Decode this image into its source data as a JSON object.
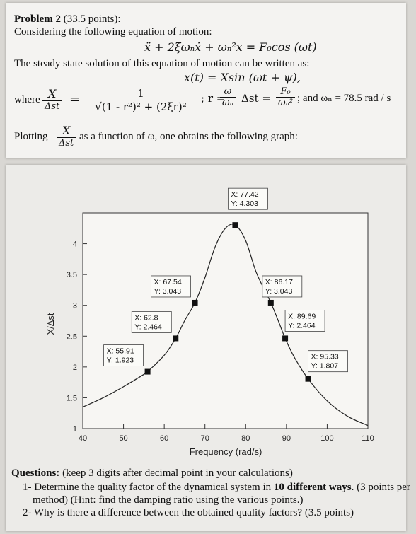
{
  "problem": {
    "title": "Problem 2",
    "points": "(33.5 points):",
    "intro": "Considering the following equation of motion:",
    "equation": "ẍ + 2ξωₙẋ + ωₙ²x = F₀cos (ωt)",
    "steady_text": "The steady state solution of this equation of motion can be written as:",
    "solution": "x(t) = Xsin (ωt + ψ),",
    "where": "where",
    "ratio_num": "X",
    "ratio_den": "Δst",
    "equals": "=",
    "one": "1",
    "denominator": "√(1 - r²)² + (2ξr)²",
    "r_def": "; r =",
    "omega": "ω",
    "omega_n": "ωₙ",
    "delta_eq": "Δst =",
    "F0": "F₀",
    "omega_n2": "ωₙ²",
    "wn_value": "; and ωₙ = 78.5 rad / s",
    "plotting_pre": "Plotting",
    "plotting_post": "as a function of ω, one obtains the following graph:"
  },
  "chart_data": {
    "type": "line",
    "xlabel": "Frequency (rad/s)",
    "ylabel": "X/Δst",
    "xlim": [
      40,
      110
    ],
    "ylim": [
      1,
      4.5
    ],
    "xticks": [
      "40",
      "50",
      "60",
      "70",
      "80",
      "90",
      "100",
      "110"
    ],
    "yticks": [
      "1",
      "1.5",
      "2",
      "2.5",
      "3",
      "3.5",
      "4"
    ],
    "grid": false,
    "curve": {
      "x": [
        40,
        45,
        50,
        55,
        55.91,
        60,
        62.8,
        65,
        67.54,
        70,
        72.5,
        75,
        77.42,
        80,
        82.5,
        85,
        86.17,
        88,
        89.69,
        92,
        95.33,
        100,
        105,
        110
      ],
      "y": [
        1.35,
        1.5,
        1.68,
        1.88,
        1.923,
        2.19,
        2.464,
        2.75,
        3.043,
        3.45,
        3.95,
        4.25,
        4.303,
        4.05,
        3.55,
        3.2,
        3.043,
        2.75,
        2.464,
        2.15,
        1.807,
        1.45,
        1.2,
        1.05
      ]
    },
    "datatips": [
      {
        "x": "55.91",
        "y": "1.923",
        "xv": 55.91,
        "yv": 1.923,
        "label_x": "X: 55.91",
        "label_y": "Y: 1.923"
      },
      {
        "x": "62.8",
        "y": "2.464",
        "xv": 62.8,
        "yv": 2.464,
        "label_x": "X: 62.8",
        "label_y": "Y: 2.464"
      },
      {
        "x": "67.54",
        "y": "3.043",
        "xv": 67.54,
        "yv": 3.043,
        "label_x": "X: 67.54",
        "label_y": "Y: 3.043"
      },
      {
        "x": "77.42",
        "y": "4.303",
        "xv": 77.42,
        "yv": 4.303,
        "label_x": "X: 77.42",
        "label_y": "Y: 4.303"
      },
      {
        "x": "86.17",
        "y": "3.043",
        "xv": 86.17,
        "yv": 3.043,
        "label_x": "X: 86.17",
        "label_y": "Y: 3.043"
      },
      {
        "x": "89.69",
        "y": "2.464",
        "xv": 89.69,
        "yv": 2.464,
        "label_x": "X: 89.69",
        "label_y": "Y: 2.464"
      },
      {
        "x": "95.33",
        "y": "1.807",
        "xv": 95.33,
        "yv": 1.807,
        "label_x": "X: 95.33",
        "label_y": "Y: 1.807"
      }
    ]
  },
  "questions": {
    "heading": "Questions:",
    "heading_note": "(keep 3 digits after decimal point in your calculations)",
    "q1_pre": "1- Determine the quality factor of the dynamical system in",
    "q1_bold": "10 different ways",
    "q1_post": ". (3 points per",
    "q1_line2": "method) (Hint: find the damping ratio using the various points.)",
    "q2": "2- Why is there a difference between the obtained quality factors? (3.5 points)"
  }
}
